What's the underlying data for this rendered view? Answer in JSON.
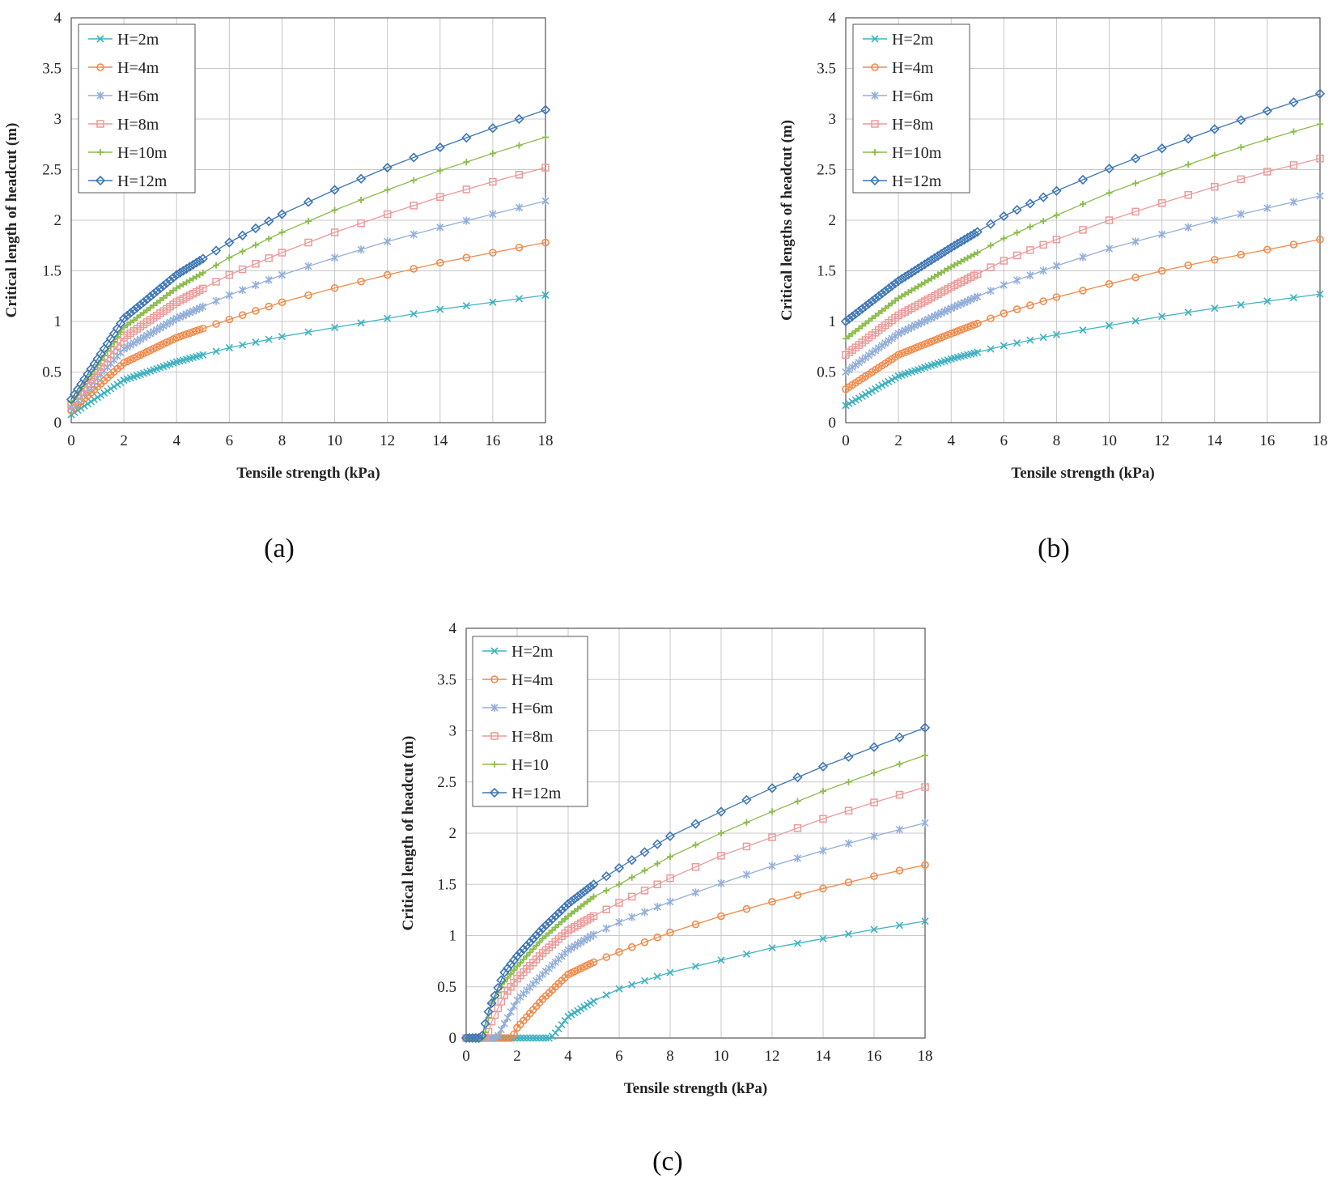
{
  "colors": {
    "H2": "#3fb2c0",
    "H4": "#ef8a4a",
    "H6": "#93afd9",
    "H8": "#eb9a99",
    "H10": "#8cbc4c",
    "H12": "#3f76b4"
  },
  "chart_data": [
    {
      "type": "line",
      "panel_label": "(a)",
      "xlabel": "Tensile strength (kPa)",
      "ylabel": "Critical length of headcut (m)",
      "xlim": [
        0,
        18
      ],
      "ylim": [
        0,
        4
      ],
      "xticks": [
        "0",
        "2",
        "4",
        "6",
        "8",
        "10",
        "12",
        "14",
        "16",
        "18"
      ],
      "yticks": [
        "0",
        "0.5",
        "1",
        "1.5",
        "2",
        "2.5",
        "3",
        "3.5",
        "4"
      ],
      "legend_position": "top-left",
      "series": [
        {
          "name": "H=2m",
          "marker": "x",
          "color": "#3fb2c0",
          "x": [
            0,
            2,
            4,
            6,
            8,
            10,
            12,
            14,
            16,
            18
          ],
          "y": [
            0.08,
            0.42,
            0.6,
            0.74,
            0.85,
            0.94,
            1.03,
            1.12,
            1.19,
            1.26
          ]
        },
        {
          "name": "H=4m",
          "marker": "circle",
          "color": "#ef8a4a",
          "x": [
            0,
            2,
            4,
            6,
            8,
            10,
            12,
            14,
            16,
            18
          ],
          "y": [
            0.12,
            0.59,
            0.84,
            1.02,
            1.19,
            1.33,
            1.46,
            1.58,
            1.68,
            1.78
          ]
        },
        {
          "name": "H=6m",
          "marker": "star",
          "color": "#93afd9",
          "x": [
            0,
            2,
            4,
            6,
            8,
            10,
            12,
            14,
            16,
            18
          ],
          "y": [
            0.15,
            0.73,
            1.03,
            1.26,
            1.46,
            1.63,
            1.79,
            1.93,
            2.06,
            2.19
          ]
        },
        {
          "name": "H=8m",
          "marker": "square",
          "color": "#eb9a99",
          "x": [
            0,
            2,
            4,
            6,
            8,
            10,
            12,
            14,
            16,
            18
          ],
          "y": [
            0.18,
            0.84,
            1.19,
            1.46,
            1.68,
            1.88,
            2.06,
            2.23,
            2.38,
            2.52
          ]
        },
        {
          "name": "H=10m",
          "marker": "plus",
          "color": "#8cbc4c",
          "x": [
            0,
            2,
            4,
            6,
            8,
            10,
            12,
            14,
            16,
            18
          ],
          "y": [
            0.2,
            0.94,
            1.33,
            1.63,
            1.88,
            2.1,
            2.3,
            2.49,
            2.66,
            2.82
          ]
        },
        {
          "name": "H=12m",
          "marker": "diamond",
          "color": "#3f76b4",
          "x": [
            0,
            2,
            4,
            6,
            8,
            10,
            12,
            14,
            16,
            18
          ],
          "y": [
            0.23,
            1.03,
            1.46,
            1.78,
            2.06,
            2.3,
            2.52,
            2.72,
            2.91,
            3.09
          ]
        }
      ]
    },
    {
      "type": "line",
      "panel_label": "(b)",
      "xlabel": "Tensile strength (kPa)",
      "ylabel": "Critical lengths of headcut (m)",
      "xlim": [
        0,
        18
      ],
      "ylim": [
        0,
        4
      ],
      "xticks": [
        "0",
        "2",
        "4",
        "6",
        "8",
        "10",
        "12",
        "14",
        "16",
        "18"
      ],
      "yticks": [
        "0",
        "0.5",
        "1",
        "1.5",
        "2",
        "2.5",
        "3",
        "3.5",
        "4"
      ],
      "legend_position": "top-left",
      "series": [
        {
          "name": "H=2m",
          "marker": "x",
          "color": "#3fb2c0",
          "x": [
            0,
            2,
            4,
            6,
            8,
            10,
            12,
            14,
            16,
            18
          ],
          "y": [
            0.17,
            0.46,
            0.63,
            0.76,
            0.87,
            0.96,
            1.05,
            1.13,
            1.2,
            1.27
          ]
        },
        {
          "name": "H=4m",
          "marker": "circle",
          "color": "#ef8a4a",
          "x": [
            0,
            2,
            4,
            6,
            8,
            10,
            12,
            14,
            16,
            18
          ],
          "y": [
            0.33,
            0.67,
            0.88,
            1.08,
            1.24,
            1.37,
            1.5,
            1.61,
            1.71,
            1.81
          ]
        },
        {
          "name": "H=6m",
          "marker": "star",
          "color": "#93afd9",
          "x": [
            0,
            2,
            4,
            6,
            8,
            10,
            12,
            14,
            16,
            18
          ],
          "y": [
            0.5,
            0.88,
            1.13,
            1.36,
            1.55,
            1.72,
            1.86,
            2.0,
            2.12,
            2.24
          ]
        },
        {
          "name": "H=8m",
          "marker": "square",
          "color": "#eb9a99",
          "x": [
            0,
            2,
            4,
            6,
            8,
            10,
            12,
            14,
            16,
            18
          ],
          "y": [
            0.67,
            1.06,
            1.34,
            1.6,
            1.81,
            2.0,
            2.17,
            2.33,
            2.48,
            2.61
          ]
        },
        {
          "name": "H=10m",
          "marker": "plus",
          "color": "#8cbc4c",
          "x": [
            0,
            2,
            4,
            6,
            8,
            10,
            12,
            14,
            16,
            18
          ],
          "y": [
            0.83,
            1.23,
            1.54,
            1.82,
            2.05,
            2.27,
            2.46,
            2.64,
            2.8,
            2.95
          ]
        },
        {
          "name": "H=12m",
          "marker": "diamond",
          "color": "#3f76b4",
          "x": [
            0,
            2,
            4,
            6,
            8,
            10,
            12,
            14,
            16,
            18
          ],
          "y": [
            1.0,
            1.4,
            1.73,
            2.04,
            2.29,
            2.51,
            2.71,
            2.9,
            3.08,
            3.25
          ]
        }
      ]
    },
    {
      "type": "line",
      "panel_label": "(c)",
      "xlabel": "Tensile strength (kPa)",
      "ylabel": "Critical length of headcut (m)",
      "xlim": [
        0,
        18
      ],
      "ylim": [
        0,
        4
      ],
      "xticks": [
        "0",
        "2",
        "4",
        "6",
        "8",
        "10",
        "12",
        "14",
        "16",
        "18"
      ],
      "yticks": [
        "0",
        "0.5",
        "1",
        "1.5",
        "2",
        "2.5",
        "3",
        "3.5",
        "4"
      ],
      "legend_position": "top-left",
      "series": [
        {
          "name": "H=2m",
          "marker": "x",
          "color": "#3fb2c0",
          "x": [
            0,
            1,
            2,
            3,
            3.3,
            3.5,
            4,
            5,
            6,
            8,
            10,
            12,
            14,
            16,
            18
          ],
          "y": [
            0,
            0,
            0,
            0,
            0,
            0.05,
            0.21,
            0.36,
            0.48,
            0.64,
            0.76,
            0.88,
            0.97,
            1.06,
            1.14
          ]
        },
        {
          "name": "H=4m",
          "marker": "circle",
          "color": "#ef8a4a",
          "x": [
            0,
            1,
            1.8,
            2,
            3,
            4,
            5,
            6,
            8,
            10,
            12,
            14,
            16,
            18
          ],
          "y": [
            0,
            0,
            0,
            0.1,
            0.38,
            0.62,
            0.74,
            0.84,
            1.03,
            1.19,
            1.33,
            1.46,
            1.58,
            1.69
          ]
        },
        {
          "name": "H=6m",
          "marker": "star",
          "color": "#93afd9",
          "x": [
            0,
            1,
            1.2,
            1.5,
            2,
            3,
            4,
            5,
            6,
            8,
            10,
            12,
            14,
            16,
            18
          ],
          "y": [
            0,
            0,
            0,
            0.14,
            0.37,
            0.62,
            0.86,
            1.01,
            1.13,
            1.33,
            1.51,
            1.68,
            1.83,
            1.97,
            2.1
          ]
        },
        {
          "name": "H=8m",
          "marker": "square",
          "color": "#eb9a99",
          "x": [
            0,
            0.8,
            1.0,
            1.5,
            2,
            3,
            4,
            5,
            6,
            8,
            10,
            12,
            14,
            16,
            18
          ],
          "y": [
            0,
            0,
            0.16,
            0.42,
            0.58,
            0.83,
            1.05,
            1.19,
            1.32,
            1.56,
            1.78,
            1.96,
            2.14,
            2.3,
            2.45
          ]
        },
        {
          "name": "H=10",
          "marker": "plus",
          "color": "#8cbc4c",
          "x": [
            0,
            0.7,
            1.0,
            1.5,
            2,
            3,
            4,
            5,
            6,
            8,
            10,
            12,
            14,
            16,
            18
          ],
          "y": [
            0,
            0,
            0.34,
            0.55,
            0.7,
            0.97,
            1.19,
            1.38,
            1.5,
            1.77,
            2.0,
            2.21,
            2.41,
            2.59,
            2.76
          ]
        },
        {
          "name": "H=12m",
          "marker": "diamond",
          "color": "#3f76b4",
          "x": [
            0,
            0.6,
            0.9,
            1.5,
            2,
            3,
            4,
            5,
            6,
            8,
            10,
            12,
            14,
            16,
            18
          ],
          "y": [
            0,
            0,
            0.28,
            0.64,
            0.8,
            1.07,
            1.31,
            1.5,
            1.66,
            1.97,
            2.21,
            2.44,
            2.65,
            2.84,
            3.03
          ]
        }
      ]
    }
  ]
}
